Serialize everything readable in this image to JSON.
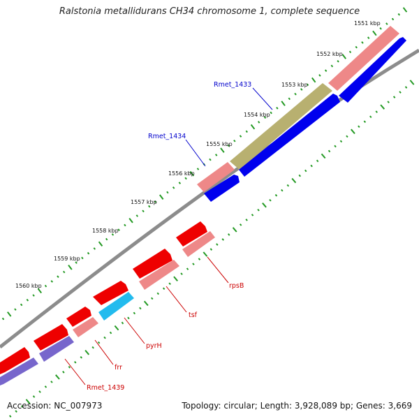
{
  "title": "Ralstonia metallidurans CH34 chromosome 1, complete sequence",
  "footer": {
    "accession_text": "Accession: NC_007973",
    "summary_text": "Topology: circular; Length: 3,928,089 bp; Genes: 3,669"
  },
  "ruler": {
    "labels": [
      "1551 kbp",
      "1552 kbp",
      "1553 kbp",
      "1554 kbp",
      "1555 kbp",
      "1556 kbp",
      "1557 kbp",
      "1558 kbp",
      "1559 kbp",
      "1560 kbp"
    ],
    "dot_color": "#229922"
  },
  "colors": {
    "backbone": "#8c8c8c",
    "red_gene": "#ee0000",
    "pink_gene": "#ee8888",
    "olive_gene": "#b8b070",
    "blue_gene": "#0000ee",
    "cyan_gene": "#22bbee",
    "purple_gene": "#7766cc",
    "blue_label": "#0000cc",
    "red_label": "#cc0000"
  },
  "gene_labels": {
    "rmet_1433": "Rmet_1433",
    "rmet_1434": "Rmet_1434",
    "rpsB": "rpsB",
    "tsf": "tsf",
    "pyrH": "pyrH",
    "frr": "frr",
    "rmet_1439": "Rmet_1439"
  }
}
